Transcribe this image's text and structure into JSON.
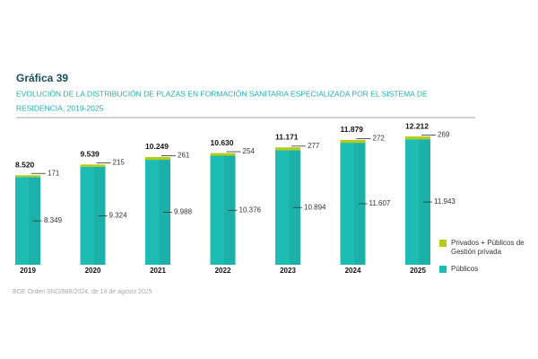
{
  "chart_data": {
    "type": "stacked_bar",
    "title": "Gráfica 39",
    "subtitle": [
      "EVOLUCIÓN DE LA DISTRIBUCIÓN DE PLAZAS EN FORMACIÓN SANITARIA ESPECIALIZADA POR EL SISTEMA DE",
      "RESIDENCIA, 2019-2025"
    ],
    "categories": [
      "2019",
      "2020",
      "2021",
      "2022",
      "2023",
      "2024",
      "2025"
    ],
    "series": [
      {
        "name": "Públicos",
        "color": "#1ebdb3",
        "values": [
          8349,
          9324,
          9988,
          10376,
          10894,
          11607,
          11943
        ],
        "value_labels": [
          "8.349",
          "9.324",
          "9.988",
          "10.376",
          "10.894",
          "11.607",
          "11.943"
        ]
      },
      {
        "name": "Privados + Públicos de Gestión privada",
        "color": "#b3cc1a",
        "values": [
          171,
          215,
          261,
          254,
          277,
          272,
          269
        ]
      }
    ],
    "totals": {
      "values": [
        8520,
        9539,
        10249,
        10630,
        11171,
        11879,
        12212
      ],
      "value_labels": [
        "8.520",
        "9.539",
        "10.249",
        "10.630",
        "11.171",
        "11.879",
        "12.212"
      ]
    },
    "source": "BOE Orden SND/888/2024, de 14 de agosto 2025"
  }
}
